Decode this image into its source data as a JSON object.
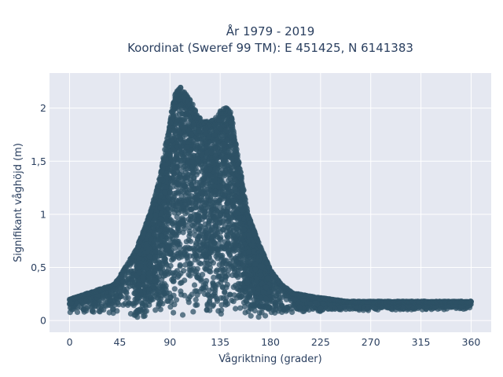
{
  "chart_data": {
    "type": "scatter",
    "title_line1": "År 1979 - 2019",
    "title_line2": "Koordinat (Sweref 99 TM): E 451425, N 6141383",
    "xlabel": "Vågriktning (grader)",
    "ylabel": "Signifikant våghöjd (m)",
    "xlim": [
      -18,
      378
    ],
    "ylim": [
      -0.11,
      2.33
    ],
    "x_ticks": [
      0,
      45,
      90,
      135,
      180,
      225,
      270,
      315,
      360
    ],
    "x_tick_labels": [
      "0",
      "45",
      "90",
      "135",
      "180",
      "225",
      "270",
      "315",
      "360"
    ],
    "y_ticks": [
      0,
      0.5,
      1,
      1.5,
      2
    ],
    "y_tick_labels": [
      "0",
      "0,5",
      "1",
      "1,5",
      "2"
    ],
    "grid": true,
    "marker_color": "#2e5166",
    "plot_bg": "#e5e8f1",
    "envelope": {
      "direction": [
        0,
        20,
        40,
        50,
        60,
        70,
        80,
        90,
        95,
        100,
        105,
        110,
        115,
        120,
        125,
        130,
        135,
        140,
        145,
        150,
        155,
        160,
        170,
        180,
        190,
        200,
        220,
        250,
        300,
        360
      ],
      "max_height": [
        0.2,
        0.27,
        0.34,
        0.5,
        0.68,
        0.95,
        1.3,
        1.9,
        2.15,
        2.2,
        2.12,
        2.05,
        1.92,
        1.88,
        1.87,
        1.9,
        1.97,
        2.02,
        1.95,
        1.6,
        1.3,
        1.0,
        0.72,
        0.48,
        0.34,
        0.26,
        0.22,
        0.18,
        0.18,
        0.18
      ],
      "min_height": [
        0.07,
        0.06,
        0.04,
        0.03,
        0.02,
        0.02,
        0.02,
        0.02,
        0.02,
        0.02,
        0.02,
        0.02,
        0.02,
        0.02,
        0.02,
        0.02,
        0.02,
        0.02,
        0.02,
        0.02,
        0.02,
        0.02,
        0.03,
        0.04,
        0.06,
        0.07,
        0.08,
        0.09,
        0.1,
        0.1
      ]
    }
  }
}
